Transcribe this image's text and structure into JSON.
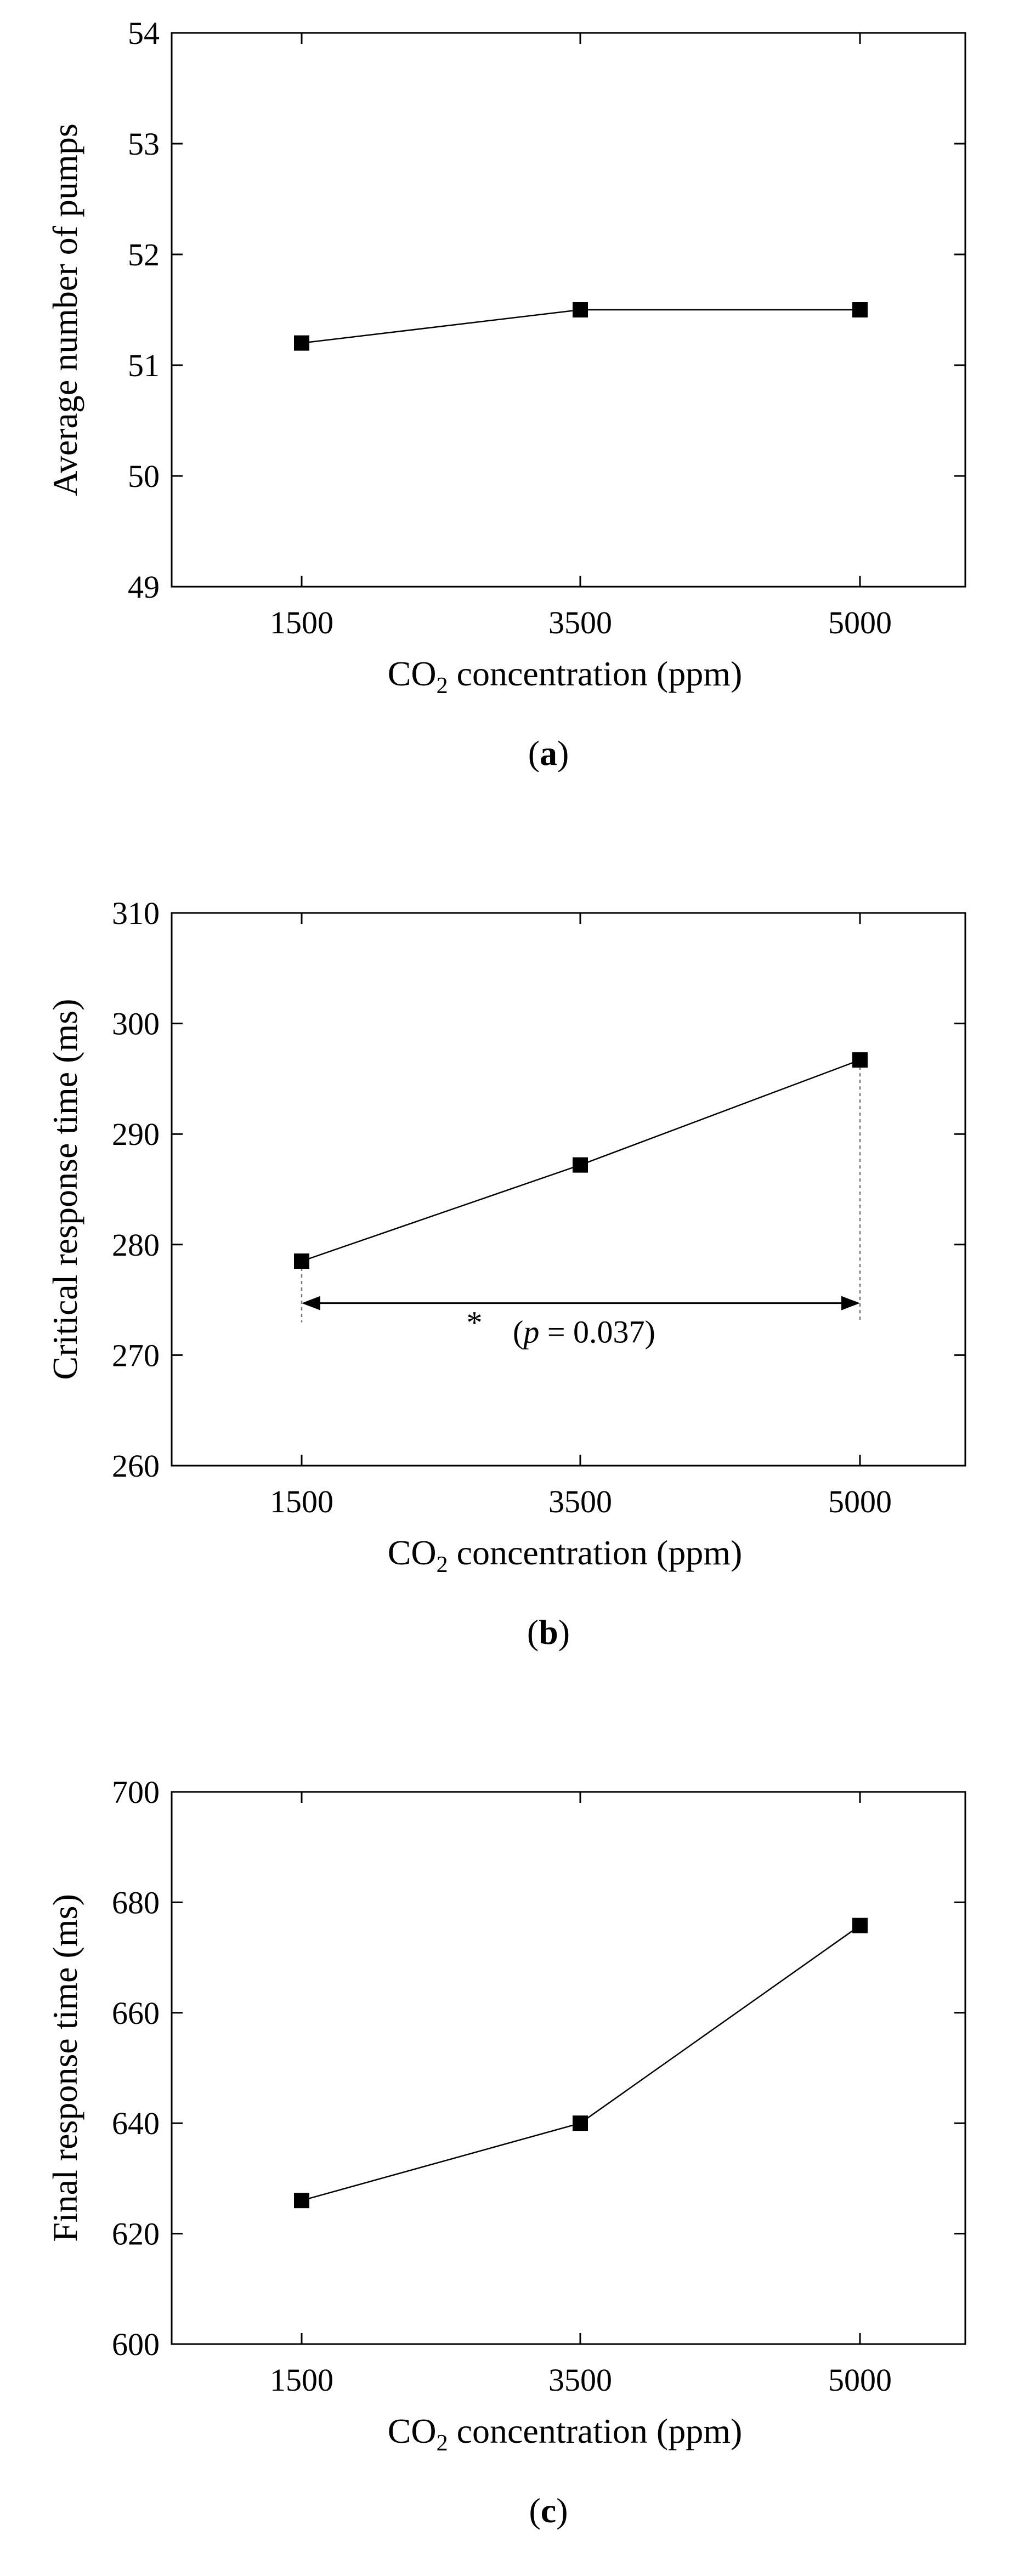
{
  "chart_data": [
    {
      "type": "line",
      "panel_label": "a",
      "title": "",
      "xlabel": "CO2 concentration (ppm)",
      "ylabel": "Average number of pumps",
      "categories": [
        "1500",
        "3500",
        "5000"
      ],
      "values": [
        51.2,
        51.5,
        51.5
      ],
      "ylim": [
        49,
        54
      ],
      "yticks": [
        49,
        50,
        51,
        52,
        53,
        54
      ],
      "annotation": null
    },
    {
      "type": "line",
      "panel_label": "b",
      "title": "",
      "xlabel": "CO2 concentration (ppm)",
      "ylabel": "Critical response time (ms)",
      "categories": [
        "1500",
        "3500",
        "5000"
      ],
      "values": [
        278.5,
        287.2,
        296.7
      ],
      "ylim": [
        260,
        310
      ],
      "yticks": [
        260,
        270,
        280,
        290,
        300,
        310
      ],
      "annotation": {
        "from_category": 0,
        "to_category": 2,
        "y_value": 274.7,
        "star": "*",
        "p_symbol": "p",
        "p_text": " = 0.037)"
      }
    },
    {
      "type": "line",
      "panel_label": "c",
      "title": "",
      "xlabel": "CO2 concentration (ppm)",
      "ylabel": "Final response time (ms)",
      "categories": [
        "1500",
        "3500",
        "5000"
      ],
      "values": [
        626,
        640,
        675.8
      ],
      "ylim": [
        600,
        700
      ],
      "yticks": [
        600,
        620,
        640,
        660,
        680,
        700
      ],
      "annotation": null
    }
  ]
}
